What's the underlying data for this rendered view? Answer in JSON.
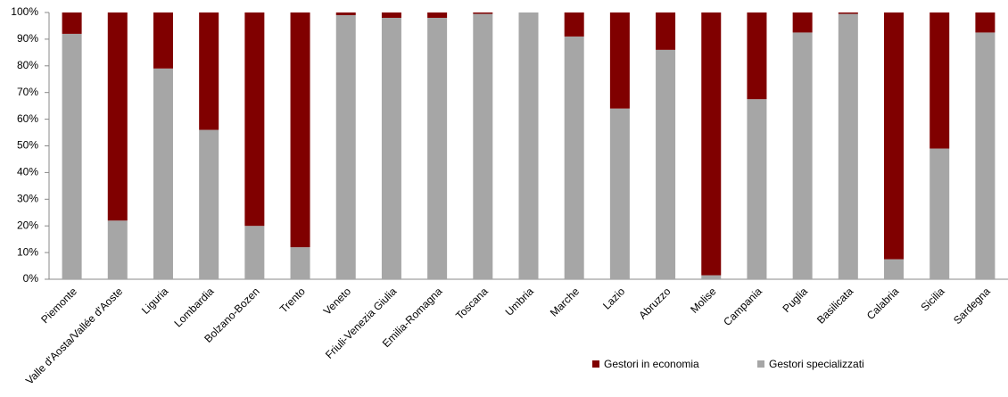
{
  "chart_data": {
    "type": "stacked_bar",
    "categories": [
      "Piemonte",
      "Valle d'Aosta/Vallée d'Aoste",
      "Liguria",
      "Lombardia",
      "Bolzano-Bozen",
      "Trento",
      "Veneto",
      "Friuli-Venezia Giulia",
      "Emilia-Romagna",
      "Toscana",
      "Umbria",
      "Marche",
      "Lazio",
      "Abruzzo",
      "Molise",
      "Campania",
      "Puglia",
      "Basilicata",
      "Calabria",
      "Sicilia",
      "Sardegna"
    ],
    "series": [
      {
        "name": "Gestori in economia",
        "color": "#800000",
        "values": [
          8,
          78,
          21,
          44,
          80,
          88,
          1,
          2,
          2,
          0.5,
          0,
          9,
          36,
          14,
          98.5,
          32.5,
          7.5,
          0.5,
          92.5,
          51,
          7.5
        ]
      },
      {
        "name": "Gestori specializzati",
        "color": "#a6a6a6",
        "values": [
          92,
          22,
          79,
          56,
          20,
          12,
          99,
          98,
          98,
          99.5,
          100,
          91,
          64,
          86,
          1.5,
          67.5,
          92.5,
          99.5,
          7.5,
          49,
          92.5
        ]
      }
    ],
    "ylim": [
      0,
      100
    ],
    "yticks": [
      {
        "value": 0,
        "label": "0%"
      },
      {
        "value": 10,
        "label": "10%"
      },
      {
        "value": 20,
        "label": "20%"
      },
      {
        "value": 30,
        "label": "30%"
      },
      {
        "value": 40,
        "label": "40%"
      },
      {
        "value": 50,
        "label": "50%"
      },
      {
        "value": 60,
        "label": "60%"
      },
      {
        "value": 70,
        "label": "70%"
      },
      {
        "value": 80,
        "label": "80%"
      },
      {
        "value": 90,
        "label": "90%"
      },
      {
        "value": 100,
        "label": "100%"
      }
    ],
    "legend": "bottom-right"
  }
}
